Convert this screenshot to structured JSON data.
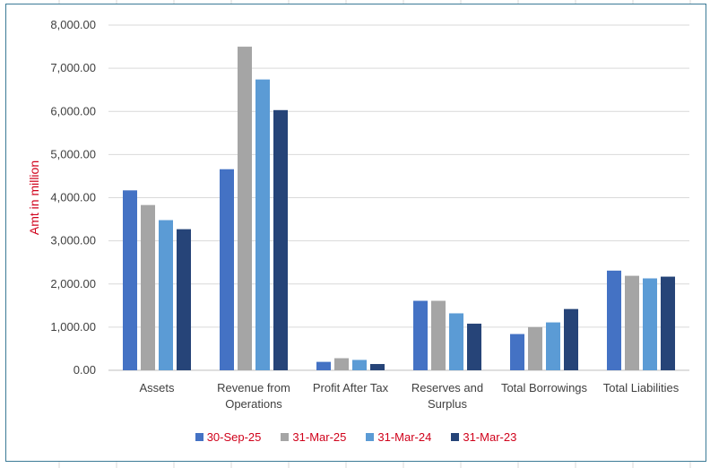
{
  "chart_data": {
    "type": "bar",
    "categories": [
      [
        "Assets"
      ],
      [
        "Revenue from",
        "Operations"
      ],
      [
        "Profit After Tax"
      ],
      [
        "Reserves and",
        "Surplus"
      ],
      [
        "Total Borrowings"
      ],
      [
        "Total Liabilities"
      ]
    ],
    "series": [
      {
        "name": "30-Sep-25",
        "color": "#4472c4",
        "values": [
          4170,
          4660,
          195,
          1610,
          840,
          2310
        ]
      },
      {
        "name": "31-Mar-25",
        "color": "#a5a5a5",
        "values": [
          3830,
          7500,
          280,
          1610,
          1000,
          2190
        ]
      },
      {
        "name": "31-Mar-24",
        "color": "#5b9bd5",
        "values": [
          3480,
          6740,
          240,
          1320,
          1110,
          2130
        ]
      },
      {
        "name": "31-Mar-23",
        "color": "#264478",
        "values": [
          3270,
          6030,
          145,
          1080,
          1420,
          2170
        ]
      }
    ],
    "ylabel": "Amt in million",
    "ylim": [
      0,
      8000
    ],
    "yticks": [
      "0.00",
      "1,000.00",
      "2,000.00",
      "3,000.00",
      "4,000.00",
      "5,000.00",
      "6,000.00",
      "7,000.00",
      "8,000.00"
    ],
    "grid": true,
    "legend_position": "bottom",
    "axis_label_color": "#d0021b"
  }
}
